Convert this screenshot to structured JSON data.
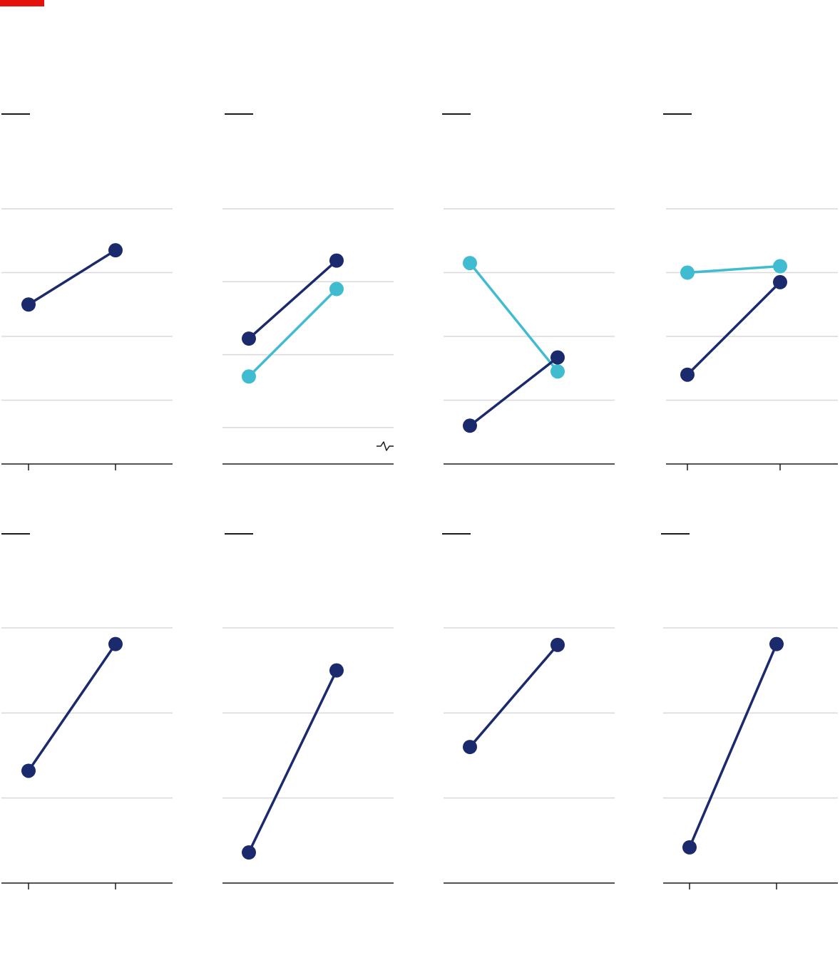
{
  "colors": {
    "accent": "#e3120b",
    "dark": "#1a2a6c",
    "light": "#40bcd0",
    "grid": "#d9d9d9",
    "axis": "#1a1a1a"
  },
  "chart_data": [
    {
      "type": "line",
      "categories": [
        "",
        ""
      ],
      "ylim": [
        0,
        4
      ],
      "gridlines": [
        1,
        2,
        3,
        4
      ],
      "xticks": true,
      "break": false,
      "series": [
        {
          "color": "dark",
          "values": [
            2.5,
            3.35
          ]
        }
      ]
    },
    {
      "type": "line",
      "categories": [
        "",
        ""
      ],
      "ylim": [
        0,
        3.5
      ],
      "gridlines": [
        0.5,
        1.5,
        2.5,
        3.5
      ],
      "xticks": false,
      "break": true,
      "series": [
        {
          "color": "dark",
          "values": [
            1.72,
            2.79
          ]
        },
        {
          "color": "light",
          "values": [
            1.2,
            2.4
          ]
        }
      ]
    },
    {
      "type": "line",
      "categories": [
        "",
        ""
      ],
      "ylim": [
        0,
        4
      ],
      "gridlines": [
        1,
        2,
        3,
        4
      ],
      "xticks": false,
      "break": false,
      "series": [
        {
          "color": "light",
          "values": [
            3.15,
            1.45
          ]
        },
        {
          "color": "dark",
          "values": [
            0.6,
            1.67
          ]
        }
      ]
    },
    {
      "type": "line",
      "categories": [
        "",
        ""
      ],
      "ylim": [
        0,
        4
      ],
      "gridlines": [
        1,
        2,
        3,
        4
      ],
      "xticks": true,
      "break": false,
      "series": [
        {
          "color": "light",
          "values": [
            3.0,
            3.1
          ]
        },
        {
          "color": "dark",
          "values": [
            1.4,
            2.85
          ]
        }
      ]
    },
    {
      "type": "line",
      "categories": [
        "",
        ""
      ],
      "ylim": [
        0,
        3
      ],
      "gridlines": [
        1,
        2,
        3
      ],
      "xticks": true,
      "break": false,
      "series": [
        {
          "color": "dark",
          "values": [
            1.32,
            2.81
          ]
        }
      ]
    },
    {
      "type": "line",
      "categories": [
        "",
        ""
      ],
      "ylim": [
        0,
        3
      ],
      "gridlines": [
        1,
        2,
        3
      ],
      "xticks": false,
      "break": false,
      "series": [
        {
          "color": "dark",
          "values": [
            0.36,
            2.5
          ]
        }
      ]
    },
    {
      "type": "line",
      "categories": [
        "",
        ""
      ],
      "ylim": [
        0,
        3
      ],
      "gridlines": [
        1,
        2,
        3
      ],
      "xticks": false,
      "break": false,
      "series": [
        {
          "color": "dark",
          "values": [
            1.6,
            2.8
          ]
        }
      ]
    },
    {
      "type": "line",
      "categories": [
        "",
        ""
      ],
      "ylim": [
        0,
        3
      ],
      "gridlines": [
        1,
        2,
        3
      ],
      "xticks": true,
      "break": false,
      "series": [
        {
          "color": "dark",
          "values": [
            0.42,
            2.81
          ]
        }
      ]
    }
  ]
}
